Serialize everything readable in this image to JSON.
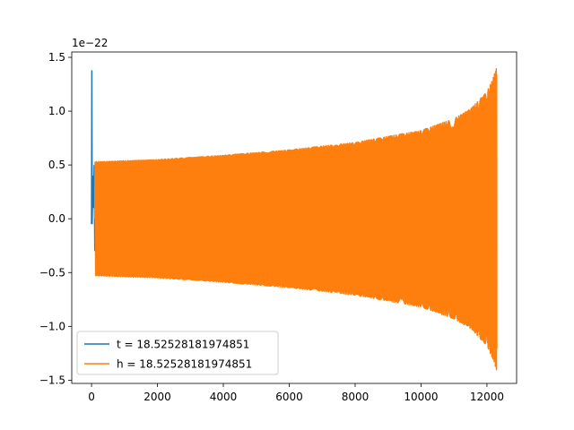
{
  "chart_data": {
    "type": "line",
    "title": "",
    "xlabel": "",
    "ylabel": "",
    "y_offset_text": "1e−22",
    "xlim": [
      -600,
      12900
    ],
    "ylim": [
      -1.53,
      1.55
    ],
    "x_ticks": [
      0,
      2000,
      4000,
      6000,
      8000,
      10000,
      12000
    ],
    "x_tick_labels": [
      "0",
      "2000",
      "4000",
      "6000",
      "8000",
      "10000",
      "12000"
    ],
    "y_ticks": [
      -1.5,
      -1.0,
      -0.5,
      0.0,
      0.5,
      1.0,
      1.5
    ],
    "y_tick_labels": [
      "−1.5",
      "−1.0",
      "−0.5",
      "0.0",
      "0.5",
      "1.0",
      "1.5"
    ],
    "grid": false,
    "legend_position": "lower-left",
    "series": [
      {
        "name": "t = 18.52528181974851",
        "color": "#1f77b4",
        "description_points": {
          "x": [
            0,
            10,
            20,
            40,
            60,
            80,
            100
          ],
          "y": [
            -0.05,
            1.38,
            -0.05,
            0.4,
            0.1,
            0.5,
            -0.3
          ]
        }
      },
      {
        "name": "h = 18.52528181974851",
        "color": "#ff7f0e",
        "envelope": {
          "x": [
            100,
            2000,
            4000,
            6000,
            8000,
            10000,
            11000,
            11500,
            12000,
            12200,
            12300
          ],
          "amplitude": [
            0.53,
            0.55,
            0.59,
            0.64,
            0.71,
            0.82,
            0.93,
            1.02,
            1.18,
            1.32,
            1.42
          ]
        }
      }
    ]
  },
  "legend": {
    "items": [
      {
        "label": "t = 18.52528181974851",
        "color": "#1f77b4"
      },
      {
        "label": "h = 18.52528181974851",
        "color": "#ff7f0e"
      }
    ]
  }
}
